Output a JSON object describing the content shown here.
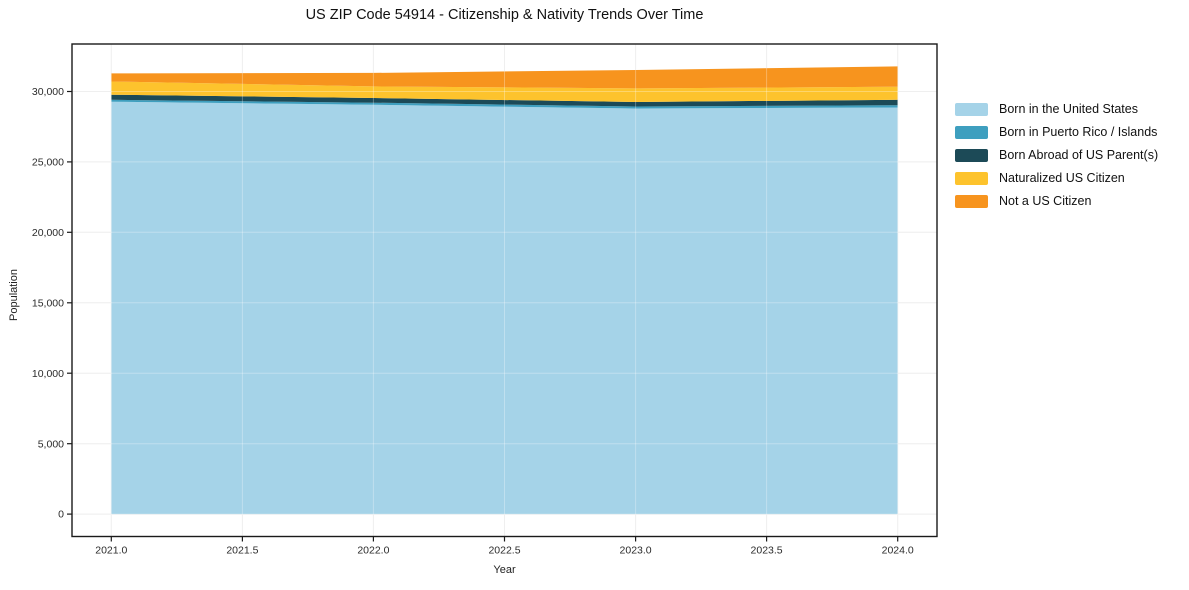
{
  "chart": {
    "title": "US ZIP Code 54914 - Citizenship & Nativity Trends Over Time",
    "xlabel": "Year",
    "ylabel": "Population",
    "colors": {
      "background": "#ffffff",
      "spine": "#1a1a1a",
      "grid_under": "#e9e9e9",
      "grid_over": "#ffffff",
      "tick_text": "#2b2b2b"
    }
  },
  "chart_data": {
    "type": "area",
    "stacked": true,
    "title": "US ZIP Code 54914 - Citizenship & Nativity Trends Over Time",
    "xlabel": "Year",
    "ylabel": "Population",
    "x": [
      2021,
      2022,
      2023,
      2024
    ],
    "series": [
      {
        "name": "Born in the United States",
        "color": "#a5d3e8",
        "values": [
          29270,
          29050,
          28790,
          28860
        ]
      },
      {
        "name": "Born in Puerto Rico / Islands",
        "color": "#3e9fbf",
        "values": [
          140,
          150,
          140,
          165
        ]
      },
      {
        "name": "Born Abroad of US Parent(s)",
        "color": "#1c4a57",
        "values": [
          360,
          335,
          320,
          385
        ]
      },
      {
        "name": "Naturalized US Citizen",
        "color": "#fdc32d",
        "values": [
          940,
          825,
          965,
          925
        ]
      },
      {
        "name": "Not a US Citizen",
        "color": "#f7941e",
        "values": [
          570,
          960,
          1305,
          1445
        ]
      }
    ],
    "totals": [
      31280,
      31320,
      31520,
      31780
    ],
    "x_tick_labels": [
      "2021.0",
      "2021.5",
      "2022.0",
      "2022.5",
      "2023.0",
      "2023.5",
      "2024.0"
    ],
    "x_tick_values": [
      2021,
      2021.5,
      2022,
      2022.5,
      2023,
      2023.5,
      2024
    ],
    "y_tick_labels": [
      "0",
      "5,000",
      "10,000",
      "15,000",
      "20,000",
      "25,000",
      "30,000"
    ],
    "y_tick_values": [
      0,
      5000,
      10000,
      15000,
      20000,
      25000,
      30000
    ],
    "xlim": [
      2020.85,
      2024.15
    ],
    "ylim": [
      -1589,
      33369
    ],
    "grid": true,
    "legend_position": "right-outside"
  }
}
